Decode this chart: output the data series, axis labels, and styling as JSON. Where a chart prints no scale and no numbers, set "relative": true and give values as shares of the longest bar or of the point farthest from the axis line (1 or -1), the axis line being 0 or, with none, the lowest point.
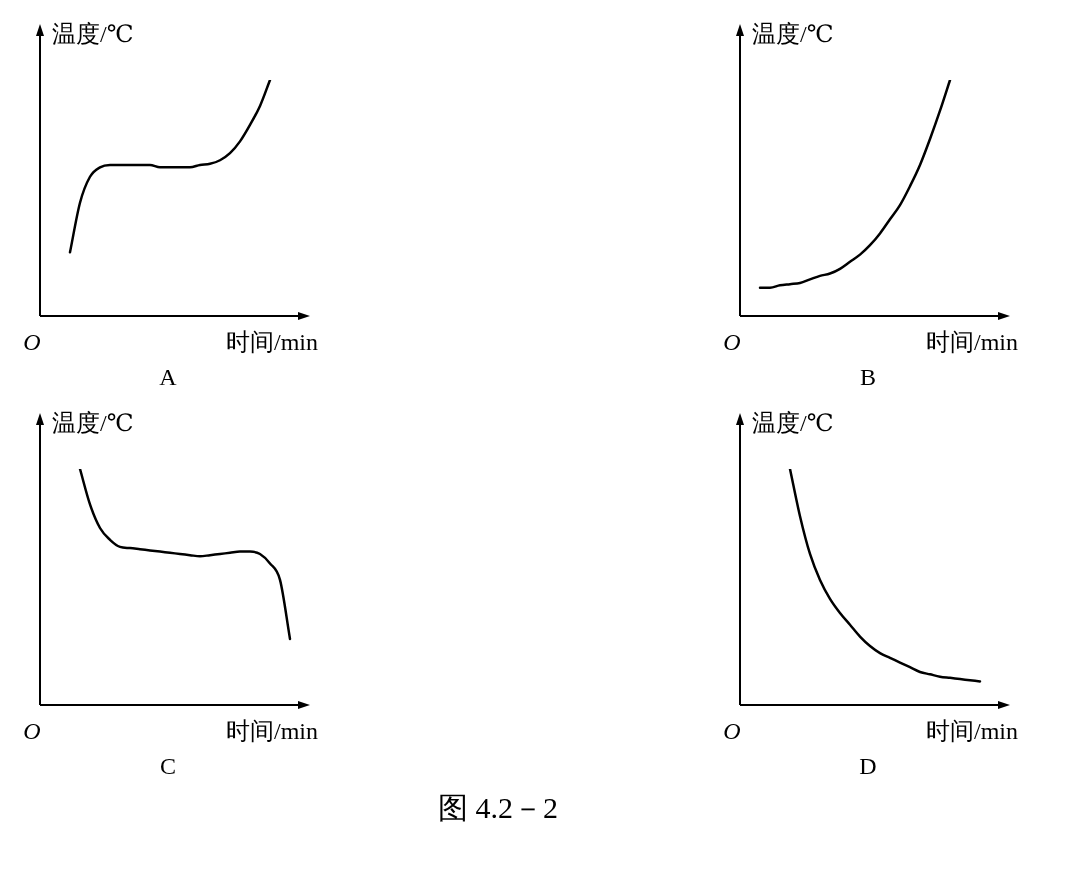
{
  "chart_data": [
    {
      "type": "line",
      "title": "A",
      "xlabel": "时间/min",
      "ylabel": "温度/℃",
      "relative": true,
      "marker": "none",
      "annotations": [
        "O"
      ],
      "categories": [
        null,
        null,
        null,
        null,
        null,
        null,
        null,
        null,
        null,
        null,
        null,
        null,
        null,
        null,
        null,
        null,
        null,
        null,
        null,
        null,
        null,
        null,
        null,
        null,
        null,
        null,
        null
      ],
      "series": [
        {
          "color": "#000000",
          "values": [
            null,
            null,
            null,
            0.27,
            0.48,
            0.59,
            0.63,
            0.64,
            0.64,
            0.64,
            0.64,
            0.64,
            0.63,
            0.63,
            0.63,
            0.63,
            0.64,
            0.645,
            0.66,
            0.69,
            0.74,
            0.81,
            0.89,
            1,
            null,
            null,
            null
          ]
        }
      ]
    },
    {
      "type": "line",
      "title": "B",
      "xlabel": "时间/min",
      "ylabel": "温度/℃",
      "relative": true,
      "marker": "none",
      "annotations": [
        "O"
      ],
      "categories": [
        null,
        null,
        null,
        null,
        null,
        null,
        null,
        null,
        null,
        null,
        null,
        null,
        null,
        null,
        null,
        null,
        null,
        null,
        null,
        null,
        null,
        null,
        null,
        null,
        null,
        null,
        null
      ],
      "series": [
        {
          "color": "#000000",
          "values": [
            null,
            null,
            0.12,
            0.12,
            0.13,
            0.135,
            0.14,
            0.155,
            0.17,
            0.18,
            0.2,
            0.23,
            0.26,
            0.3,
            0.35,
            0.41,
            0.47,
            0.55,
            0.64,
            0.75,
            0.87,
            1,
            null,
            null,
            null,
            null,
            null
          ]
        }
      ]
    },
    {
      "type": "line",
      "title": "C",
      "xlabel": "时间/min",
      "ylabel": "温度/℃",
      "relative": true,
      "marker": "none",
      "annotations": [
        "O"
      ],
      "categories": [
        null,
        null,
        null,
        null,
        null,
        null,
        null,
        null,
        null,
        null,
        null,
        null,
        null,
        null,
        null,
        null,
        null,
        null,
        null,
        null,
        null,
        null,
        null,
        null,
        null,
        null,
        null
      ],
      "series": [
        {
          "color": "#000000",
          "values": [
            null,
            null,
            null,
            null,
            1,
            0.85,
            0.75,
            0.7,
            0.67,
            0.665,
            0.66,
            0.655,
            0.65,
            0.645,
            0.64,
            0.635,
            0.63,
            0.635,
            0.64,
            0.645,
            0.65,
            0.65,
            0.64,
            0.6,
            0.53,
            0.28,
            null
          ]
        }
      ]
    },
    {
      "type": "line",
      "title": "D",
      "xlabel": "时间/min",
      "ylabel": "温度/℃",
      "relative": true,
      "marker": "none",
      "annotations": [
        "O",
        "图 4.2－2"
      ],
      "categories": [
        null,
        null,
        null,
        null,
        null,
        null,
        null,
        null,
        null,
        null,
        null,
        null,
        null,
        null,
        null,
        null,
        null,
        null,
        null,
        null,
        null,
        null,
        null,
        null,
        null,
        null,
        null
      ],
      "series": [
        {
          "color": "#000000",
          "values": [
            null,
            null,
            null,
            null,
            null,
            1,
            0.8,
            0.64,
            0.53,
            0.45,
            0.39,
            0.34,
            0.29,
            0.25,
            0.22,
            0.2,
            0.18,
            0.16,
            0.14,
            0.13,
            0.12,
            0.115,
            0.11,
            0.105,
            0.1,
            null,
            null
          ]
        }
      ]
    }
  ]
}
